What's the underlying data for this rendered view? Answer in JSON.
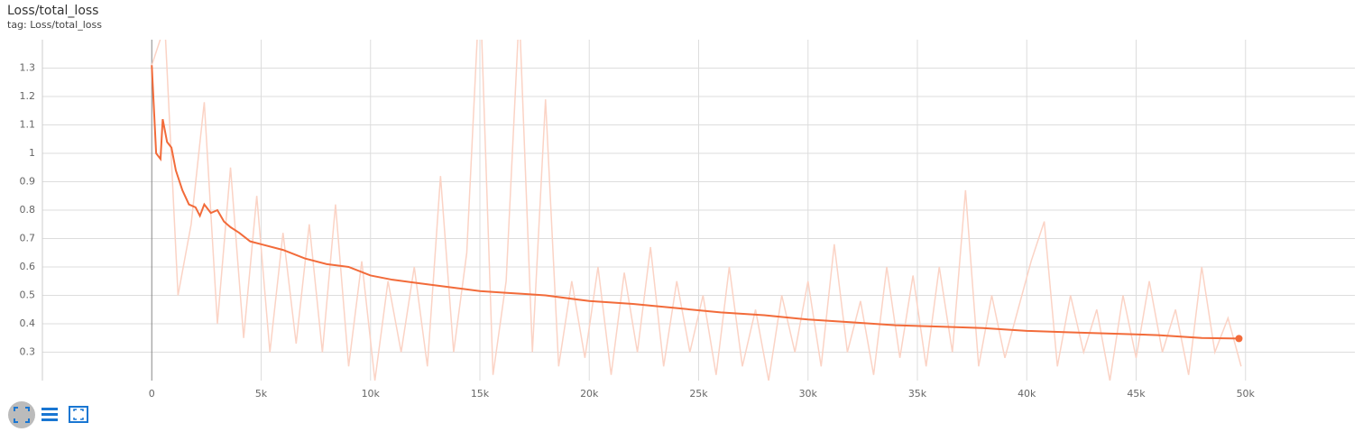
{
  "chart_data": {
    "type": "line",
    "title": "Loss/total_loss",
    "subtitle": "tag: Loss/total_loss",
    "xlim": [
      -5000,
      55000
    ],
    "ylim": [
      0.2,
      1.4
    ],
    "xticks": [
      0,
      {
        "value": 5000,
        "label": "5k"
      },
      {
        "value": 10000,
        "label": "10k"
      },
      {
        "value": 15000,
        "label": "15k"
      },
      {
        "value": 20000,
        "label": "20k"
      },
      {
        "value": 25000,
        "label": "25k"
      },
      {
        "value": 30000,
        "label": "30k"
      },
      {
        "value": 35000,
        "label": "35k"
      },
      {
        "value": 40000,
        "label": "40k"
      },
      {
        "value": 45000,
        "label": "45k"
      },
      {
        "value": 50000,
        "label": "50k"
      }
    ],
    "yticks": [
      0.3,
      0.4,
      0.5,
      0.6,
      0.7,
      0.8,
      0.9,
      1,
      1.1,
      1.2,
      1.3
    ],
    "grid": true,
    "series": [
      {
        "color": "#fbd3c5",
        "x": [
          0,
          600,
          1200,
          1800,
          2400,
          3000,
          3600,
          4200,
          4800,
          5400,
          6000,
          6600,
          7200,
          7800,
          8400,
          9000,
          9600,
          10200,
          10800,
          11400,
          12000,
          12600,
          13200,
          13800,
          14400,
          15000,
          15600,
          16200,
          16800,
          17400,
          18000,
          18600,
          19200,
          19800,
          20400,
          21000,
          21600,
          22200,
          22800,
          23400,
          24000,
          24600,
          25200,
          25800,
          26400,
          27000,
          27600,
          28200,
          28800,
          29400,
          30000,
          30600,
          31200,
          31800,
          32400,
          33000,
          33600,
          34200,
          34800,
          35400,
          36000,
          36600,
          37200,
          37800,
          38400,
          39000,
          39600,
          40200,
          40800,
          41400,
          42000,
          42600,
          43200,
          43800,
          44400,
          45000,
          45600,
          46200,
          46800,
          47400,
          48000,
          48600,
          49200,
          49800
        ],
        "values": [
          1.31,
          1.45,
          0.5,
          0.75,
          1.18,
          0.4,
          0.95,
          0.35,
          0.85,
          0.3,
          0.72,
          0.33,
          0.75,
          0.3,
          0.82,
          0.25,
          0.62,
          0.2,
          0.55,
          0.3,
          0.6,
          0.25,
          0.92,
          0.3,
          0.65,
          1.6,
          0.22,
          0.55,
          1.5,
          0.3,
          1.19,
          0.25,
          0.55,
          0.28,
          0.6,
          0.22,
          0.58,
          0.3,
          0.67,
          0.25,
          0.55,
          0.3,
          0.5,
          0.22,
          0.6,
          0.25,
          0.45,
          0.2,
          0.5,
          0.3,
          0.55,
          0.25,
          0.68,
          0.3,
          0.48,
          0.22,
          0.6,
          0.28,
          0.57,
          0.25,
          0.6,
          0.3,
          0.87,
          0.25,
          0.5,
          0.28,
          0.45,
          0.62,
          0.76,
          0.25,
          0.5,
          0.3,
          0.45,
          0.2,
          0.5,
          0.28,
          0.55,
          0.3,
          0.45,
          0.22,
          0.6,
          0.3,
          0.42,
          0.25
        ]
      },
      {
        "color": "#f26b3a",
        "x": [
          0,
          200,
          400,
          500,
          700,
          900,
          1100,
          1400,
          1700,
          2000,
          2200,
          2400,
          2700,
          3000,
          3300,
          3600,
          4000,
          4500,
          5000,
          6000,
          7000,
          8000,
          9000,
          10000,
          11000,
          12000,
          13000,
          14000,
          15000,
          16000,
          17000,
          18000,
          20000,
          22000,
          24000,
          26000,
          28000,
          30000,
          32000,
          34000,
          36000,
          38000,
          40000,
          42000,
          44000,
          46000,
          48000,
          49700
        ],
        "values": [
          1.31,
          1.0,
          0.98,
          1.12,
          1.04,
          1.02,
          0.94,
          0.87,
          0.82,
          0.81,
          0.78,
          0.82,
          0.79,
          0.8,
          0.76,
          0.74,
          0.72,
          0.69,
          0.68,
          0.66,
          0.63,
          0.61,
          0.6,
          0.57,
          0.555,
          0.545,
          0.535,
          0.525,
          0.515,
          0.51,
          0.505,
          0.5,
          0.48,
          0.47,
          0.455,
          0.44,
          0.43,
          0.415,
          0.405,
          0.395,
          0.39,
          0.385,
          0.375,
          0.37,
          0.365,
          0.36,
          0.35,
          0.348
        ]
      }
    ]
  }
}
